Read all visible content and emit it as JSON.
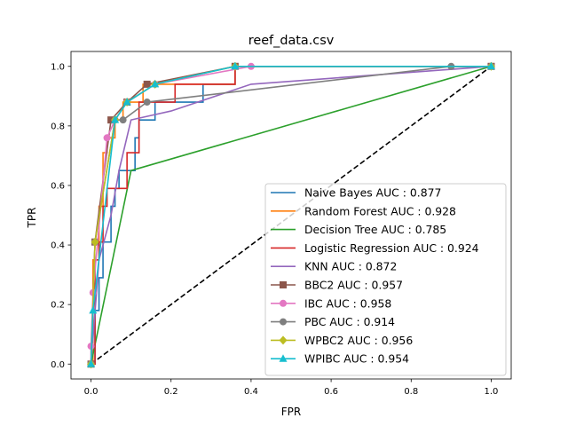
{
  "chart_data": {
    "type": "line",
    "title": "reef_data.csv",
    "xlabel": "FPR",
    "ylabel": "TPR",
    "xlim": [
      -0.05,
      1.05
    ],
    "ylim": [
      -0.05,
      1.05
    ],
    "xticks": [
      0.0,
      0.2,
      0.4,
      0.6,
      0.8,
      1.0
    ],
    "yticks": [
      0.0,
      0.2,
      0.4,
      0.6,
      0.8,
      1.0
    ],
    "xtick_labels": [
      "0.0",
      "0.2",
      "0.4",
      "0.6",
      "0.8",
      "1.0"
    ],
    "ytick_labels": [
      "0.0",
      "0.2",
      "0.4",
      "0.6",
      "0.8",
      "1.0"
    ],
    "grid": false,
    "legend_position": "lower-right",
    "diagonal": {
      "x": [
        0,
        1
      ],
      "y": [
        0,
        1
      ],
      "color": "#000000",
      "style": "dashed"
    },
    "series": [
      {
        "name": "Naive Bayes AUC : 0.877",
        "color": "#1f77b4",
        "marker": "none",
        "step": true,
        "x": [
          0,
          0.01,
          0.01,
          0.02,
          0.02,
          0.03,
          0.03,
          0.05,
          0.05,
          0.06,
          0.06,
          0.07,
          0.07,
          0.11,
          0.11,
          0.12,
          0.12,
          0.16,
          0.16,
          0.28,
          0.28,
          0.36,
          0.36,
          1
        ],
        "y": [
          0,
          0,
          0.18,
          0.18,
          0.29,
          0.29,
          0.41,
          0.41,
          0.53,
          0.53,
          0.59,
          0.59,
          0.65,
          0.65,
          0.76,
          0.76,
          0.82,
          0.82,
          0.88,
          0.88,
          0.94,
          0.94,
          1.0,
          1.0
        ]
      },
      {
        "name": "Random Forest AUC : 0.928",
        "color": "#ff7f0e",
        "marker": "none",
        "step": true,
        "x": [
          0,
          0.005,
          0.005,
          0.02,
          0.02,
          0.03,
          0.03,
          0.04,
          0.04,
          0.06,
          0.06,
          0.08,
          0.08,
          0.13,
          0.13,
          0.36,
          0.36,
          1
        ],
        "y": [
          0,
          0,
          0.35,
          0.35,
          0.53,
          0.53,
          0.71,
          0.71,
          0.76,
          0.76,
          0.82,
          0.82,
          0.88,
          0.88,
          0.94,
          0.94,
          1.0,
          1.0
        ]
      },
      {
        "name": "Decision Tree AUC : 0.785",
        "color": "#2ca02c",
        "marker": "none",
        "step": false,
        "x": [
          0,
          0.1,
          1
        ],
        "y": [
          0,
          0.65,
          1
        ]
      },
      {
        "name": "Logistic Regression AUC : 0.924",
        "color": "#d62728",
        "marker": "none",
        "step": true,
        "x": [
          0,
          0.01,
          0.01,
          0.02,
          0.02,
          0.03,
          0.03,
          0.04,
          0.04,
          0.06,
          0.06,
          0.09,
          0.09,
          0.11,
          0.11,
          0.12,
          0.12,
          0.14,
          0.14,
          0.21,
          0.21,
          0.27,
          0.27,
          0.36,
          0.36,
          1
        ],
        "y": [
          0,
          0,
          0.35,
          0.35,
          0.41,
          0.41,
          0.53,
          0.53,
          0.59,
          0.59,
          0.59,
          0.59,
          0.71,
          0.71,
          0.71,
          0.71,
          0.88,
          0.88,
          0.88,
          0.88,
          0.94,
          0.94,
          0.94,
          0.94,
          1.0,
          1.0
        ]
      },
      {
        "name": "KNN AUC : 0.872",
        "color": "#9467bd",
        "marker": "none",
        "step": false,
        "x": [
          0,
          0.02,
          0.05,
          0.07,
          0.1,
          0.2,
          0.4,
          1
        ],
        "y": [
          0,
          0.35,
          0.5,
          0.65,
          0.82,
          0.85,
          0.94,
          1
        ]
      },
      {
        "name": "BBC2 AUC : 0.957",
        "color": "#8c564b",
        "marker": "square",
        "step": false,
        "x": [
          0,
          0.01,
          0.05,
          0.09,
          0.14,
          0.36,
          1
        ],
        "y": [
          0,
          0.41,
          0.82,
          0.88,
          0.94,
          1.0,
          1.0
        ]
      },
      {
        "name": "IBC AUC : 0.958",
        "color": "#e377c2",
        "marker": "circle",
        "step": false,
        "x": [
          0,
          0,
          0.005,
          0.04,
          0.06,
          0.09,
          0.16,
          0.4,
          1
        ],
        "y": [
          0,
          0.06,
          0.24,
          0.76,
          0.82,
          0.88,
          0.94,
          1.0,
          1.0
        ]
      },
      {
        "name": "PBC AUC : 0.914",
        "color": "#7f7f7f",
        "marker": "circle",
        "step": false,
        "x": [
          0,
          0.01,
          0.06,
          0.08,
          0.14,
          0.9,
          1
        ],
        "y": [
          0,
          0.41,
          0.82,
          0.82,
          0.88,
          1.0,
          1.0
        ]
      },
      {
        "name": "WPBC2 AUC : 0.956",
        "color": "#bcbd22",
        "marker": "diamond",
        "step": false,
        "x": [
          0,
          0.01,
          0.06,
          0.09,
          0.16,
          0.36,
          1
        ],
        "y": [
          0,
          0.41,
          0.82,
          0.88,
          0.94,
          1.0,
          1.0
        ]
      },
      {
        "name": "WPIBC AUC : 0.954",
        "color": "#17becf",
        "marker": "triangle",
        "step": false,
        "x": [
          0,
          0.005,
          0.06,
          0.09,
          0.16,
          0.36,
          1
        ],
        "y": [
          0,
          0.18,
          0.82,
          0.88,
          0.94,
          1.0,
          1.0
        ]
      }
    ]
  }
}
